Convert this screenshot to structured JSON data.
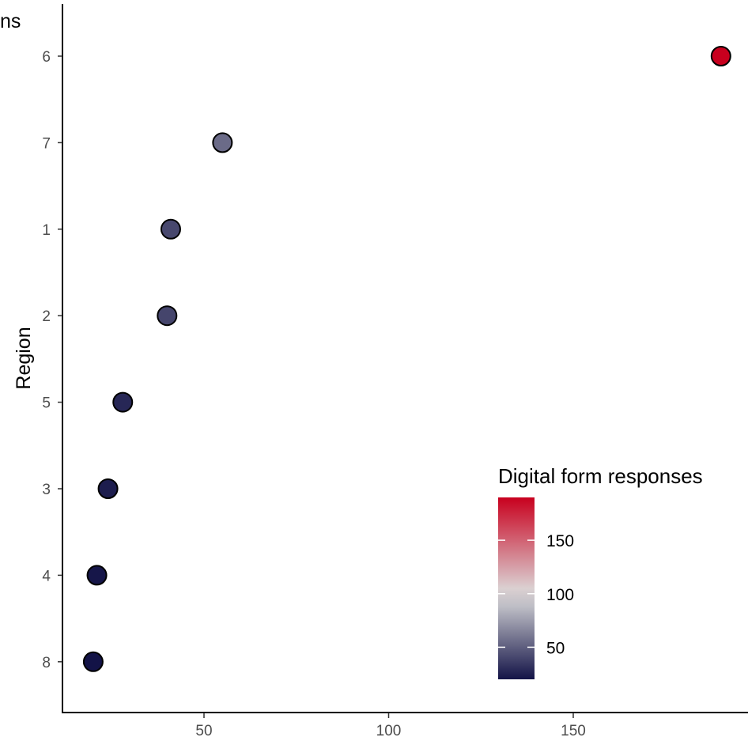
{
  "chart_data": {
    "type": "scatter",
    "title": "",
    "title_partial_visible": "ns",
    "xlabel": "",
    "ylabel": "Region",
    "xlim": [
      11,
      197
    ],
    "x_ticks": [
      50,
      100,
      150
    ],
    "categories": [
      "6",
      "7",
      "1",
      "2",
      "5",
      "3",
      "4",
      "8"
    ],
    "points": [
      {
        "region": "6",
        "value": 190
      },
      {
        "region": "7",
        "value": 55
      },
      {
        "region": "1",
        "value": 41
      },
      {
        "region": "2",
        "value": 40
      },
      {
        "region": "5",
        "value": 28
      },
      {
        "region": "3",
        "value": 24
      },
      {
        "region": "4",
        "value": 21
      },
      {
        "region": "8",
        "value": 20
      }
    ],
    "grid": false,
    "color_scale": {
      "title": "Digital form responses",
      "min": 20,
      "max": 190,
      "midpoint": 100,
      "low_color": "#131347",
      "mid_color": "#dcdcdc",
      "high_color": "#c8001e",
      "ticks": [
        50,
        100,
        150
      ]
    },
    "legend_placement": "bottom-right"
  }
}
